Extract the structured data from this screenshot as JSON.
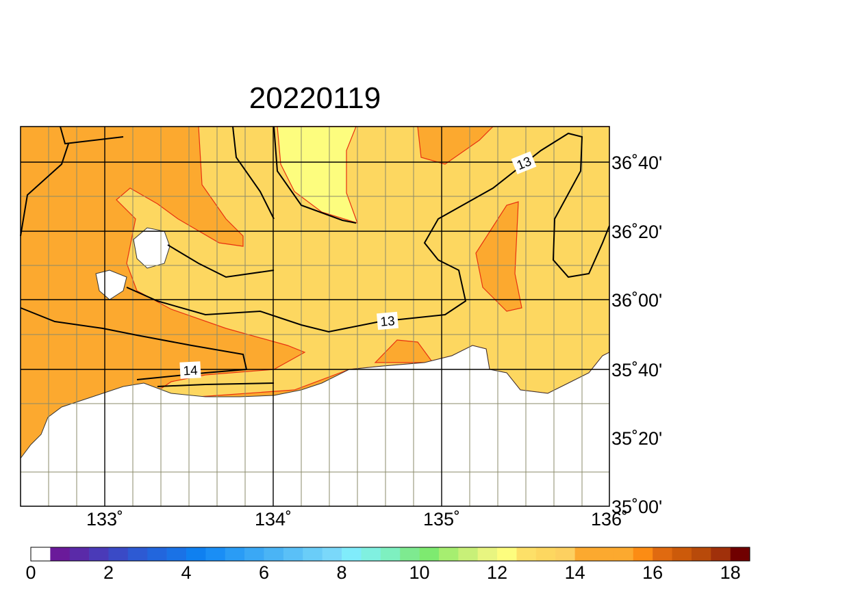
{
  "title": "20220119",
  "map": {
    "lon_labels": [
      "133˚",
      "134˚",
      "135˚",
      "136˚"
    ],
    "lat_labels": [
      "36˚40'",
      "36˚20'",
      "36˚00'",
      "35˚40'",
      "35˚20'",
      "35˚00'"
    ],
    "contour_labels": [
      "13",
      "13",
      "14"
    ]
  },
  "colorbar": {
    "step": 0.5,
    "labels": [
      0,
      2,
      4,
      6,
      8,
      10,
      12,
      14,
      16,
      18
    ],
    "colors": [
      "#ffffff",
      "#6a1a9a",
      "#5a2aa8",
      "#4a3ab8",
      "#3a4ac6",
      "#2d5ad3",
      "#2266dd",
      "#1a72e6",
      "#0f80f0",
      "#1a8ef5",
      "#2a9cf5",
      "#3aa8f5",
      "#4ab4f5",
      "#5ac0f7",
      "#6acdf8",
      "#7ad8fa",
      "#80ecfb",
      "#80f0e0",
      "#7ef0c0",
      "#7eea90",
      "#7eea70",
      "#a6ee70",
      "#c8f078",
      "#e8f580",
      "#fdfd7e",
      "#fde068",
      "#fdd760",
      "#fdd060",
      "#fca92f",
      "#fca92f",
      "#fca92f",
      "#fc8c14",
      "#e06a10",
      "#cc5a0a",
      "#b84a0a",
      "#a0300a",
      "#700000"
    ]
  }
}
